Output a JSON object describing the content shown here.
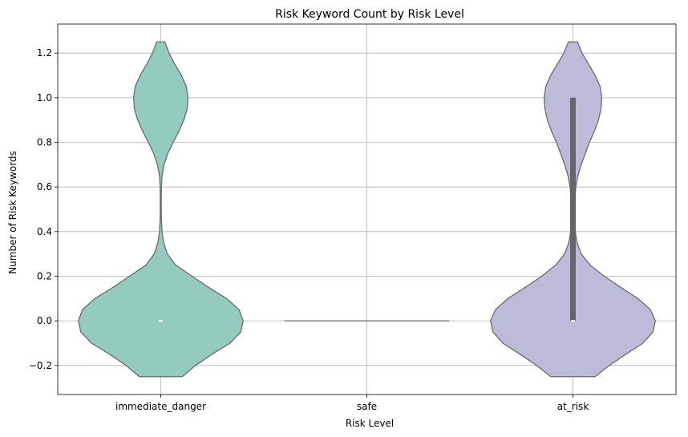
{
  "chart_data": {
    "type": "violin",
    "title": "Risk Keyword Count by Risk Level",
    "xlabel": "Risk Level",
    "ylabel": "Number of Risk Keywords",
    "ylim": [
      -0.33,
      1.33
    ],
    "yticks": [
      -0.2,
      0.0,
      0.2,
      0.4,
      0.6,
      0.8,
      1.0,
      1.2
    ],
    "ytick_labels": [
      "−0.2",
      "0.0",
      "0.2",
      "0.4",
      "0.6",
      "0.8",
      "1.0",
      "1.2"
    ],
    "grid": true,
    "categories": [
      "immediate_danger",
      "safe",
      "at_risk"
    ],
    "violins": [
      {
        "category": "immediate_danger",
        "color": "#93cbbf",
        "edge_color": "#6b6b6b",
        "profile": [
          [
            -0.25,
            0.26
          ],
          [
            -0.2,
            0.42
          ],
          [
            -0.15,
            0.62
          ],
          [
            -0.1,
            0.84
          ],
          [
            -0.05,
            0.97
          ],
          [
            0.0,
            1.0
          ],
          [
            0.05,
            0.95
          ],
          [
            0.1,
            0.8
          ],
          [
            0.15,
            0.58
          ],
          [
            0.2,
            0.38
          ],
          [
            0.25,
            0.18
          ],
          [
            0.3,
            0.08
          ],
          [
            0.35,
            0.035
          ],
          [
            0.4,
            0.015
          ],
          [
            0.45,
            0.008
          ],
          [
            0.5,
            0.006
          ],
          [
            0.55,
            0.006
          ],
          [
            0.6,
            0.008
          ],
          [
            0.65,
            0.015
          ],
          [
            0.7,
            0.04
          ],
          [
            0.75,
            0.085
          ],
          [
            0.8,
            0.15
          ],
          [
            0.85,
            0.22
          ],
          [
            0.9,
            0.28
          ],
          [
            0.95,
            0.32
          ],
          [
            1.0,
            0.33
          ],
          [
            1.05,
            0.31
          ],
          [
            1.1,
            0.25
          ],
          [
            1.15,
            0.17
          ],
          [
            1.2,
            0.1
          ],
          [
            1.25,
            0.05
          ]
        ],
        "q1": 0.0,
        "median": 0.0,
        "q3": 0.0,
        "whisker_low": 0.0,
        "whisker_high": 0.0
      },
      {
        "category": "safe",
        "color": "#fcbf9d",
        "edge_color": "#6b6b6b",
        "profile": [
          [
            0.0,
            1.0
          ]
        ],
        "q1": 0.0,
        "median": 0.0,
        "q3": 0.0,
        "whisker_low": 0.0,
        "whisker_high": 0.0
      },
      {
        "category": "at_risk",
        "color": "#bebbda",
        "edge_color": "#6b6b6b",
        "profile": [
          [
            -0.25,
            0.27
          ],
          [
            -0.2,
            0.44
          ],
          [
            -0.15,
            0.64
          ],
          [
            -0.1,
            0.85
          ],
          [
            -0.05,
            0.97
          ],
          [
            0.0,
            1.0
          ],
          [
            0.05,
            0.94
          ],
          [
            0.1,
            0.79
          ],
          [
            0.15,
            0.58
          ],
          [
            0.2,
            0.38
          ],
          [
            0.25,
            0.21
          ],
          [
            0.3,
            0.1
          ],
          [
            0.35,
            0.05
          ],
          [
            0.4,
            0.028
          ],
          [
            0.45,
            0.02
          ],
          [
            0.5,
            0.02
          ],
          [
            0.55,
            0.025
          ],
          [
            0.6,
            0.035
          ],
          [
            0.65,
            0.06
          ],
          [
            0.7,
            0.1
          ],
          [
            0.75,
            0.15
          ],
          [
            0.8,
            0.2
          ],
          [
            0.85,
            0.26
          ],
          [
            0.9,
            0.31
          ],
          [
            0.95,
            0.34
          ],
          [
            1.0,
            0.35
          ],
          [
            1.05,
            0.33
          ],
          [
            1.1,
            0.27
          ],
          [
            1.15,
            0.19
          ],
          [
            1.2,
            0.11
          ],
          [
            1.25,
            0.055
          ]
        ],
        "q1": 0.0,
        "median": 0.0,
        "q3": 1.0,
        "whisker_low": 0.0,
        "whisker_high": 1.0
      }
    ]
  }
}
